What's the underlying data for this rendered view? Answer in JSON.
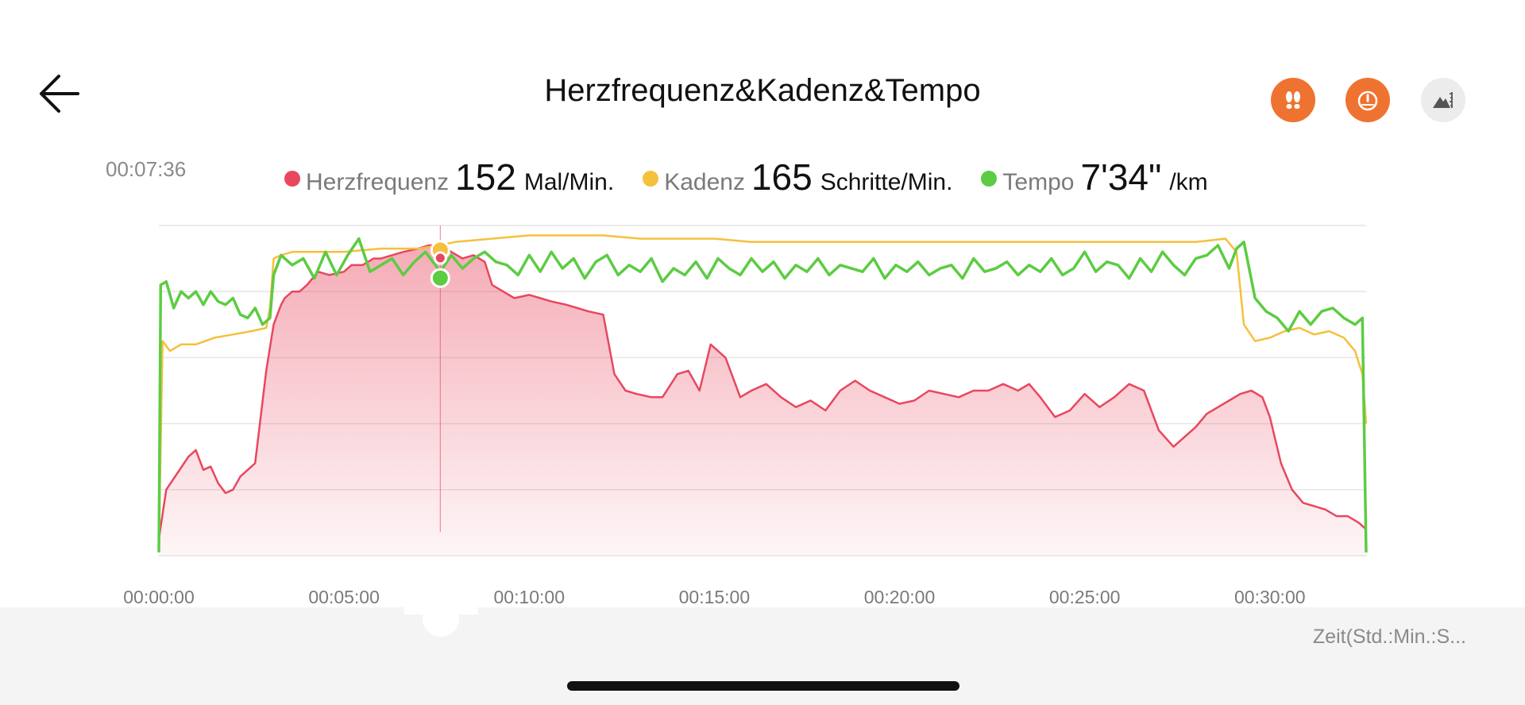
{
  "header": {
    "title": "Herzfrequenz&Kadenz&Tempo",
    "back_icon": "arrow-left-icon",
    "buttons": [
      {
        "icon": "footsteps-icon",
        "color": "#ef7330"
      },
      {
        "icon": "speedometer-icon",
        "color": "#ef7330"
      },
      {
        "icon": "terrain-altitude-icon",
        "color": "#ececec"
      }
    ]
  },
  "time_readout": "00:07:36",
  "legend": {
    "hr": {
      "name": "Herzfrequenz",
      "value": "152",
      "unit": "Mal/Min.",
      "color": "#e8475e"
    },
    "cadence": {
      "name": "Kadenz",
      "value": "165",
      "unit": "Schritte/Min.",
      "color": "#f5c03c"
    },
    "pace": {
      "name": "Tempo",
      "value": "7'34\"",
      "unit": "/km",
      "color": "#5ccc42"
    }
  },
  "axis_title": "Zeit(Std.:Min.:S...",
  "chart_data": {
    "type": "area",
    "x_tick_labels": [
      "00:00:00",
      "00:05:00",
      "00:10:00",
      "00:15:00",
      "00:20:00",
      "00:25:00",
      "00:30:00"
    ],
    "xlim_min": [
      0,
      32.6
    ],
    "cursor_min": 7.6,
    "grid": true,
    "series": [
      {
        "key": "hr",
        "style": "area",
        "color": "#e8475e",
        "x": [
          0,
          0.2,
          0.5,
          0.8,
          1.0,
          1.2,
          1.4,
          1.6,
          1.8,
          2.0,
          2.2,
          2.4,
          2.6,
          2.9,
          3.1,
          3.3,
          3.4,
          3.6,
          3.8,
          4.0,
          4.3,
          4.6,
          5.0,
          5.2,
          5.5,
          5.8,
          6.0,
          6.3,
          6.6,
          7.0,
          7.3,
          7.6,
          7.9,
          8.2,
          8.5,
          8.8,
          9.0,
          9.3,
          9.6,
          10.0,
          10.3,
          10.6,
          11.0,
          11.3,
          11.6,
          12.0,
          12.3,
          12.6,
          12.9,
          13.3,
          13.6,
          14.0,
          14.3,
          14.6,
          14.9,
          15.3,
          15.7,
          16.0,
          16.4,
          16.8,
          17.2,
          17.6,
          18.0,
          18.4,
          18.8,
          19.2,
          19.6,
          20.0,
          20.4,
          20.8,
          21.2,
          21.6,
          22.0,
          22.4,
          22.8,
          23.2,
          23.5,
          23.8,
          24.2,
          24.6,
          25.0,
          25.4,
          25.8,
          26.2,
          26.6,
          27.0,
          27.4,
          27.8,
          28.0,
          28.3,
          28.6,
          28.9,
          29.2,
          29.5,
          29.8,
          30.0,
          30.3,
          30.6,
          30.9,
          31.2,
          31.5,
          31.8,
          32.1,
          32.4,
          32.6
        ],
        "values": [
          0.05,
          0.2,
          0.25,
          0.3,
          0.32,
          0.26,
          0.27,
          0.22,
          0.19,
          0.2,
          0.24,
          0.26,
          0.28,
          0.56,
          0.7,
          0.76,
          0.78,
          0.8,
          0.8,
          0.82,
          0.86,
          0.85,
          0.86,
          0.88,
          0.88,
          0.9,
          0.9,
          0.91,
          0.92,
          0.93,
          0.94,
          0.94,
          0.92,
          0.9,
          0.91,
          0.89,
          0.82,
          0.8,
          0.78,
          0.79,
          0.78,
          0.77,
          0.76,
          0.75,
          0.74,
          0.73,
          0.55,
          0.5,
          0.49,
          0.48,
          0.48,
          0.55,
          0.56,
          0.5,
          0.64,
          0.6,
          0.48,
          0.5,
          0.52,
          0.48,
          0.45,
          0.47,
          0.44,
          0.5,
          0.53,
          0.5,
          0.48,
          0.46,
          0.47,
          0.5,
          0.49,
          0.48,
          0.5,
          0.5,
          0.52,
          0.5,
          0.52,
          0.48,
          0.42,
          0.44,
          0.49,
          0.45,
          0.48,
          0.52,
          0.5,
          0.38,
          0.33,
          0.37,
          0.39,
          0.43,
          0.45,
          0.47,
          0.49,
          0.5,
          0.48,
          0.42,
          0.28,
          0.2,
          0.16,
          0.15,
          0.14,
          0.12,
          0.12,
          0.1,
          0.08
        ]
      },
      {
        "key": "cadence",
        "style": "line",
        "color": "#f5c03c",
        "x": [
          0,
          0.1,
          0.3,
          0.6,
          1.0,
          1.5,
          2.0,
          2.5,
          2.9,
          3.0,
          3.1,
          3.3,
          3.6,
          4.0,
          5.0,
          6.0,
          7.0,
          7.6,
          8.0,
          9.0,
          10.0,
          11.0,
          12.0,
          13.0,
          14.0,
          15.0,
          16.0,
          17.0,
          18.0,
          19.0,
          20.0,
          21.0,
          22.0,
          23.0,
          24.0,
          25.0,
          26.0,
          27.0,
          28.0,
          28.8,
          29.1,
          29.3,
          29.6,
          30.0,
          30.4,
          30.8,
          31.2,
          31.6,
          32.0,
          32.3,
          32.5,
          32.6
        ],
        "values": [
          0.02,
          0.65,
          0.62,
          0.64,
          0.64,
          0.66,
          0.67,
          0.68,
          0.69,
          0.75,
          0.9,
          0.91,
          0.92,
          0.92,
          0.92,
          0.93,
          0.93,
          0.94,
          0.95,
          0.96,
          0.97,
          0.97,
          0.97,
          0.96,
          0.96,
          0.96,
          0.95,
          0.95,
          0.95,
          0.95,
          0.95,
          0.95,
          0.95,
          0.95,
          0.95,
          0.95,
          0.95,
          0.95,
          0.95,
          0.96,
          0.92,
          0.7,
          0.65,
          0.66,
          0.68,
          0.69,
          0.67,
          0.68,
          0.66,
          0.62,
          0.55,
          0.4
        ]
      },
      {
        "key": "pace",
        "style": "line",
        "color": "#5ccc42",
        "x": [
          0,
          0.05,
          0.2,
          0.4,
          0.6,
          0.8,
          1.0,
          1.2,
          1.4,
          1.6,
          1.8,
          2.0,
          2.2,
          2.4,
          2.6,
          2.8,
          3.0,
          3.1,
          3.3,
          3.6,
          3.9,
          4.2,
          4.5,
          4.8,
          5.1,
          5.4,
          5.7,
          6.0,
          6.3,
          6.6,
          6.9,
          7.2,
          7.6,
          7.9,
          8.2,
          8.5,
          8.8,
          9.1,
          9.4,
          9.7,
          10.0,
          10.3,
          10.6,
          10.9,
          11.2,
          11.5,
          11.8,
          12.1,
          12.4,
          12.7,
          13.0,
          13.3,
          13.6,
          13.9,
          14.2,
          14.5,
          14.8,
          15.1,
          15.4,
          15.7,
          16.0,
          16.3,
          16.6,
          16.9,
          17.2,
          17.5,
          17.8,
          18.1,
          18.4,
          18.7,
          19.0,
          19.3,
          19.6,
          19.9,
          20.2,
          20.5,
          20.8,
          21.1,
          21.4,
          21.7,
          22.0,
          22.3,
          22.6,
          22.9,
          23.2,
          23.5,
          23.8,
          24.1,
          24.4,
          24.7,
          25.0,
          25.3,
          25.6,
          25.9,
          26.2,
          26.5,
          26.8,
          27.1,
          27.4,
          27.7,
          28.0,
          28.3,
          28.6,
          28.9,
          29.1,
          29.3,
          29.6,
          29.9,
          30.2,
          30.5,
          30.8,
          31.1,
          31.4,
          31.7,
          32.0,
          32.3,
          32.5,
          32.6
        ],
        "values": [
          0.01,
          0.82,
          0.83,
          0.75,
          0.8,
          0.78,
          0.8,
          0.76,
          0.8,
          0.77,
          0.76,
          0.78,
          0.73,
          0.72,
          0.75,
          0.7,
          0.72,
          0.85,
          0.91,
          0.88,
          0.9,
          0.84,
          0.92,
          0.85,
          0.91,
          0.96,
          0.86,
          0.88,
          0.9,
          0.85,
          0.89,
          0.92,
          0.86,
          0.91,
          0.87,
          0.9,
          0.92,
          0.89,
          0.88,
          0.85,
          0.91,
          0.86,
          0.92,
          0.87,
          0.9,
          0.84,
          0.89,
          0.91,
          0.85,
          0.88,
          0.86,
          0.9,
          0.83,
          0.87,
          0.85,
          0.89,
          0.84,
          0.9,
          0.87,
          0.85,
          0.9,
          0.86,
          0.89,
          0.84,
          0.88,
          0.86,
          0.9,
          0.85,
          0.88,
          0.87,
          0.86,
          0.9,
          0.84,
          0.88,
          0.86,
          0.89,
          0.85,
          0.87,
          0.88,
          0.84,
          0.9,
          0.86,
          0.87,
          0.89,
          0.85,
          0.88,
          0.86,
          0.9,
          0.85,
          0.87,
          0.92,
          0.86,
          0.89,
          0.88,
          0.84,
          0.9,
          0.86,
          0.92,
          0.88,
          0.85,
          0.9,
          0.91,
          0.94,
          0.87,
          0.93,
          0.95,
          0.78,
          0.74,
          0.72,
          0.68,
          0.74,
          0.7,
          0.74,
          0.75,
          0.72,
          0.7,
          0.72,
          0.01
        ]
      }
    ]
  }
}
